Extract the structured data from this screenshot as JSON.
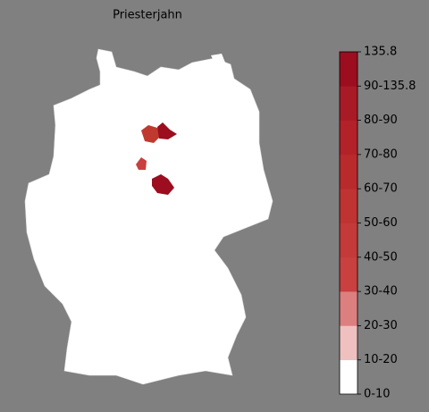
{
  "title": "Priesterjahn",
  "legend": {
    "labels": [
      "0-10",
      "10-20",
      "20-30",
      "30-40",
      "40-50",
      "50-60",
      "60-70",
      "70-80",
      "80-90",
      "90-135.8",
      "135.8"
    ],
    "colors": [
      "#ffffff",
      "#efc0c0",
      "#dc7f7f",
      "#c8403f",
      "#c43a3a",
      "#bf3333",
      "#b92a2d",
      "#b22228",
      "#a81a25",
      "#9c0d20"
    ]
  }
}
